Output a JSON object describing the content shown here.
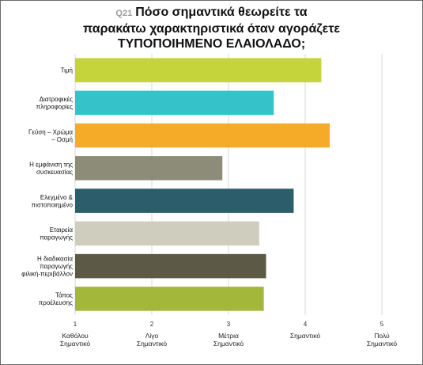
{
  "question_number": "Q21",
  "title_lines": [
    "Πόσο σημαντικά θεωρείτε τα",
    "παρακάτω χαρακτηριστικά όταν αγοράζετε",
    "ΤΥΠΟΠΟΙΗΜΕΝΟ ΕΛΑΙΟΛΑΔΟ;"
  ],
  "chart_data": {
    "type": "bar",
    "orientation": "horizontal",
    "title": "Πόσο σημαντικά θεωρείτε τα παρακάτω χαρακτηριστικά όταν αγοράζετε ΤΥΠΟΠΟΙΗΜΕΝΟ ΕΛΑΙΟΛΑΔΟ;",
    "categories": [
      [
        "Τιμή"
      ],
      [
        "Διατροφικές",
        "πληροφορίες"
      ],
      [
        "Γεύση – Χρώμα",
        "– Οσμή"
      ],
      [
        "Η εμφάνιση της",
        "συσκευασίας"
      ],
      [
        "Ελεγμένο &",
        "πιστοποιημένο"
      ],
      [
        "Εταιρεία",
        "παραγωγής"
      ],
      [
        "Η διαδικασία",
        "παραγωγής",
        "φιλική-περιβάλλον"
      ],
      [
        "Τόπος",
        "προέλευσης"
      ]
    ],
    "values": [
      4.21,
      3.59,
      4.32,
      2.92,
      3.85,
      3.4,
      3.49,
      3.46
    ],
    "colors": [
      "#c5d43a",
      "#35c2c8",
      "#f5ab28",
      "#8c8c78",
      "#2b5e6a",
      "#cfcdbd",
      "#5c5a46",
      "#a3b83a"
    ],
    "xlim": [
      1,
      5
    ],
    "ticks": [
      {
        "value": 1,
        "number": "1",
        "label": [
          "Καθόλου",
          "Σημαντικό"
        ]
      },
      {
        "value": 2,
        "number": "2",
        "label": [
          "Λίγο",
          "Σημαντικό"
        ]
      },
      {
        "value": 3,
        "number": "3",
        "label": [
          "Μέτρια",
          "Σημαντικό"
        ]
      },
      {
        "value": 4,
        "number": "4",
        "label": [
          "Σημαντικό"
        ]
      },
      {
        "value": 5,
        "number": "5",
        "label": [
          "Πολύ",
          "Σημαντικό"
        ]
      }
    ],
    "grid": true
  }
}
